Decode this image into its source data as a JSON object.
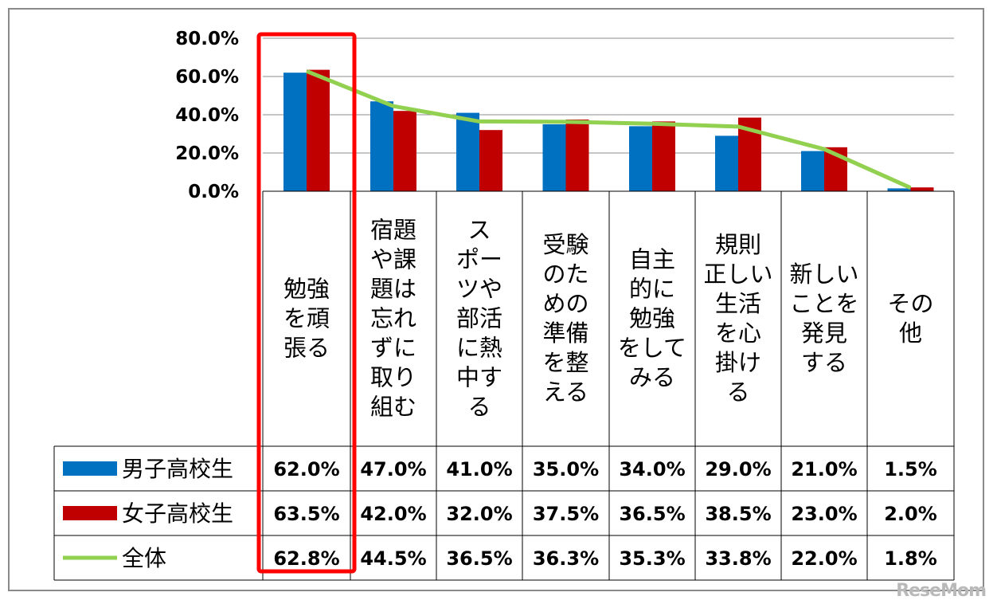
{
  "chart_data": {
    "type": "bar",
    "categories": [
      "勉強を頑張る",
      "宿題や課題は忘れずに取り組む",
      "スポーツや部活に熱中する",
      "受験のための準備を整える",
      "自主的に勉強をしてみる",
      "規則正しい生活を心掛ける",
      "新しいことを発見する",
      "その他"
    ],
    "category_lines": [
      [
        "勉強",
        "を頑",
        "張る"
      ],
      [
        "宿題",
        "や課",
        "題は",
        "忘れ",
        "ずに",
        "取り",
        "組む"
      ],
      [
        "ス",
        "ポー",
        "ツや",
        "部活",
        "に熱",
        "中す",
        "る"
      ],
      [
        "受験",
        "のた",
        "めの",
        "準備",
        "を整",
        "える"
      ],
      [
        "自主",
        "的に",
        "勉強",
        "をして",
        "みる"
      ],
      [
        "規則",
        "正しい",
        "生活",
        "を心",
        "掛け",
        "る"
      ],
      [
        "新しい",
        "ことを",
        "発見",
        "する"
      ],
      [
        "その",
        "他"
      ]
    ],
    "series": [
      {
        "name": "男子高校生",
        "type": "bar",
        "color": "#0070c0",
        "values": [
          62.0,
          47.0,
          41.0,
          35.0,
          34.0,
          29.0,
          21.0,
          1.5
        ],
        "labels": [
          "62.0%",
          "47.0%",
          "41.0%",
          "35.0%",
          "34.0%",
          "29.0%",
          "21.0%",
          "1.5%"
        ]
      },
      {
        "name": "女子高校生",
        "type": "bar",
        "color": "#c00000",
        "values": [
          63.5,
          42.0,
          32.0,
          37.5,
          36.5,
          38.5,
          23.0,
          2.0
        ],
        "labels": [
          "63.5%",
          "42.0%",
          "32.0%",
          "37.5%",
          "36.5%",
          "38.5%",
          "23.0%",
          "2.0%"
        ]
      },
      {
        "name": "全体",
        "type": "line",
        "color": "#92d050",
        "values": [
          62.8,
          44.5,
          36.5,
          36.3,
          35.3,
          33.8,
          22.0,
          1.8
        ],
        "labels": [
          "62.8%",
          "44.5%",
          "36.5%",
          "36.3%",
          "35.3%",
          "33.8%",
          "22.0%",
          "1.8%"
        ]
      }
    ],
    "y_ticks": [
      "0.0%",
      "20.0%",
      "40.0%",
      "60.0%",
      "80.0%"
    ],
    "ylim": [
      0,
      80
    ],
    "grid": true,
    "legend": "data-table-left",
    "highlight_color": "#ff0000",
    "highlight_category_index": 0
  },
  "watermark": "ReseMom"
}
